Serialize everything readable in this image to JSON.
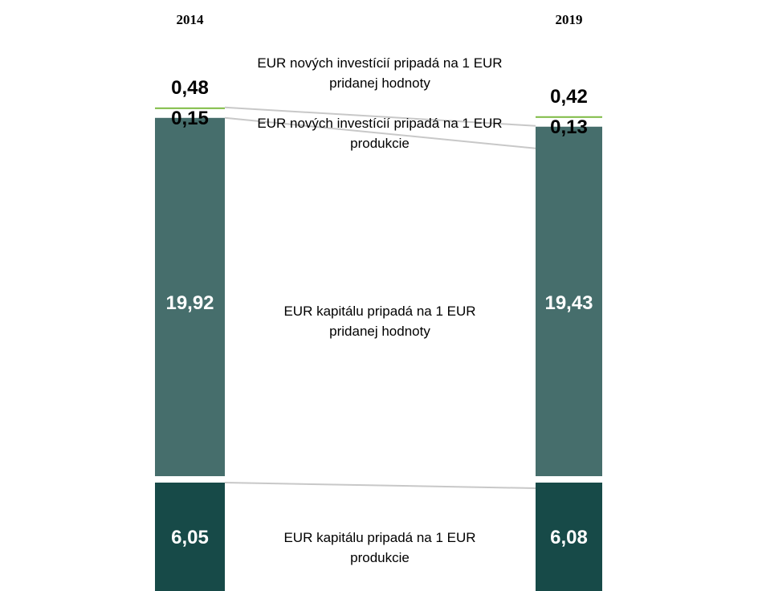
{
  "chart_data": {
    "type": "bar",
    "stacked": true,
    "categories": [
      "2014",
      "2019"
    ],
    "series": [
      {
        "name": "EUR kapitálu pripadá na 1 EUR produkcie",
        "values": [
          6.05,
          6.08
        ],
        "color": "#174a48",
        "label_lines": [
          "EUR kapitálu pripadá na 1 EUR",
          "produkcie"
        ]
      },
      {
        "name": "EUR kapitálu pripadá na 1 EUR pridanej hodnoty",
        "values": [
          19.92,
          19.43
        ],
        "color": "#466e6c",
        "label_lines": [
          "EUR kapitálu pripadá na 1 EUR",
          "pridanej hodnoty"
        ]
      },
      {
        "name": "EUR nových investícií pripadá na 1 EUR produkcie",
        "values": [
          0.15,
          0.13
        ],
        "color": "#7dbb42",
        "label_lines": [
          "EUR nových investícií pripadá na 1 EUR",
          "produkcie"
        ]
      },
      {
        "name": "EUR nových investícií pripadá na 1 EUR pridanej hodnoty",
        "values": [
          0.48,
          0.42
        ],
        "color": "#7dbb42",
        "label_lines": [
          "EUR nových investícií pripadá na 1 EUR",
          "pridanej hodnoty"
        ]
      }
    ],
    "value_labels": [
      [
        "6,05",
        "19,92",
        "0,15",
        "0,48"
      ],
      [
        "6,08",
        "19,43",
        "0,13",
        "0,42"
      ]
    ]
  }
}
